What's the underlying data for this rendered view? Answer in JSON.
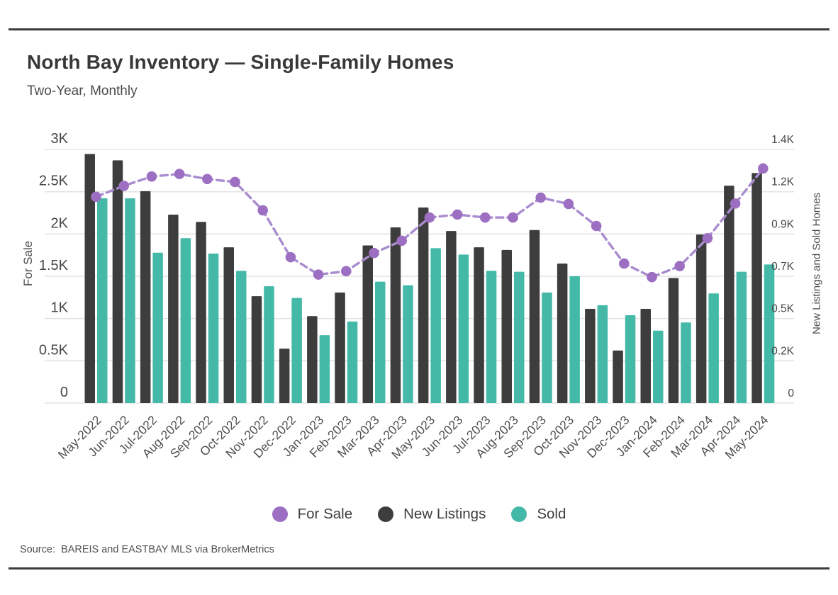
{
  "page": {
    "title": "North Bay Inventory — Single-Family Homes",
    "subtitle": "Two-Year, Monthly",
    "source": "Source:  BAREIS and EASTBAY MLS via BrokerMetrics"
  },
  "legend": {
    "items": [
      {
        "label": "For Sale",
        "color": "#9c6fc2"
      },
      {
        "label": "New Listings",
        "color": "#3d3d3d"
      },
      {
        "label": "Sold",
        "color": "#44b9a8"
      }
    ]
  },
  "colors": {
    "for_sale_dot": "#9c6fc2",
    "for_sale_line": "#a88ccf",
    "new_listings_bar": "#3d3d3d",
    "sold_bar": "#44b9a8",
    "grid": "#e3e3e3",
    "tick_text": "#474747",
    "x_tick_text": "#4f4f4f",
    "rule": "#3d3d3d"
  },
  "chart_data": {
    "type": "combo bar+line, dual axis",
    "categories": [
      "May-2022",
      "Jun-2022",
      "Jul-2022",
      "Aug-2022",
      "Sep-2022",
      "Oct-2022",
      "Nov-2022",
      "Dec-2022",
      "Jan-2023",
      "Feb-2023",
      "Mar-2023",
      "Apr-2023",
      "May-2023",
      "Jun-2023",
      "Jul-2023",
      "Aug-2023",
      "Sep-2023",
      "Oct-2023",
      "Nov-2023",
      "Dec-2023",
      "Jan-2024",
      "Feb-2024",
      "Mar-2024",
      "Apr-2024",
      "May-2024"
    ],
    "series": [
      {
        "name": "For Sale",
        "type": "line",
        "axis": "left",
        "values": [
          2440,
          2570,
          2680,
          2710,
          2650,
          2615,
          2280,
          1725,
          1520,
          1560,
          1775,
          1920,
          2195,
          2230,
          2195,
          2195,
          2430,
          2355,
          2095,
          1650,
          1490,
          1620,
          1950,
          2360,
          2775
        ]
      },
      {
        "name": "New Listings",
        "type": "bar",
        "axis": "right",
        "values": [
          1375,
          1340,
          1170,
          1040,
          1000,
          860,
          590,
          300,
          480,
          610,
          870,
          970,
          1080,
          950,
          860,
          845,
          955,
          770,
          520,
          290,
          520,
          690,
          930,
          1200,
          1270
        ]
      },
      {
        "name": "Sold",
        "type": "bar",
        "axis": "right",
        "values": [
          1130,
          1130,
          830,
          910,
          825,
          730,
          645,
          580,
          375,
          450,
          670,
          650,
          855,
          820,
          730,
          725,
          610,
          700,
          540,
          485,
          400,
          445,
          605,
          725,
          765
        ]
      }
    ],
    "left_axis": {
      "label": "For Sale",
      "range": [
        0,
        3000
      ],
      "ticks": [
        {
          "v": 0,
          "t": "0"
        },
        {
          "v": 500,
          "t": "0.5K"
        },
        {
          "v": 1000,
          "t": "1K"
        },
        {
          "v": 1500,
          "t": "1.5K"
        },
        {
          "v": 2000,
          "t": "2K"
        },
        {
          "v": 2500,
          "t": "2.5K"
        },
        {
          "v": 3000,
          "t": "3K"
        }
      ]
    },
    "right_axis": {
      "label": "New Listings and Sold Homes",
      "range": [
        0,
        1400
      ],
      "ticks": [
        {
          "v": 0,
          "t": "0"
        },
        {
          "v": 233,
          "t": "0.2K"
        },
        {
          "v": 467,
          "t": "0.5K"
        },
        {
          "v": 700,
          "t": "0.7K"
        },
        {
          "v": 933,
          "t": "0.9K"
        },
        {
          "v": 1167,
          "t": "1.2K"
        },
        {
          "v": 1400,
          "t": "1.4K"
        }
      ]
    },
    "grid": true,
    "legend_position": "bottom"
  }
}
